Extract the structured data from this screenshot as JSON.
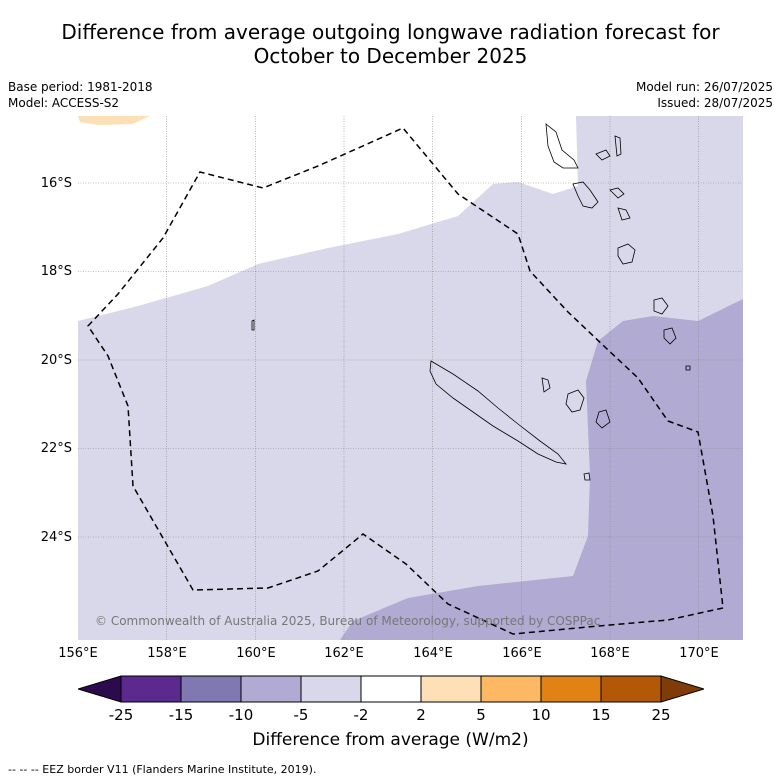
{
  "title_line1": "Difference from average outgoing longwave radiation forecast for",
  "title_line2": "October to December 2025",
  "meta": {
    "base_period": "Base period: 1981-2018",
    "model": "Model: ACCESS-S2",
    "model_run": "Model run: 26/07/2025",
    "issued": "Issued: 28/07/2025"
  },
  "map": {
    "lat_labels": [
      "16°S",
      "18°S",
      "20°S",
      "22°S",
      "24°S"
    ],
    "lon_labels": [
      "156°E",
      "158°E",
      "160°E",
      "162°E",
      "164°E",
      "166°E",
      "168°E",
      "170°E"
    ],
    "lon_range": [
      156,
      171
    ],
    "lat_range": [
      -14.8,
      -26.6
    ],
    "copyright": "© Commonwealth of Australia 2025, Bureau of Meteorology, supported by COSPPac",
    "colors": {
      "light_purple": "#d8d8ea",
      "mid_purple": "#b1aad2",
      "light_orange": "#fde0b6",
      "grid": "#888888"
    }
  },
  "colorbar": {
    "tick_labels": [
      "-25",
      "-15",
      "-10",
      "-5",
      "-2",
      "2",
      "5",
      "10",
      "15",
      "25"
    ],
    "colors": [
      "#2c0a4e",
      "#5b2a8e",
      "#8078b0",
      "#b1aad2",
      "#d8d8ea",
      "#ffffff",
      "#fde0b6",
      "#fdb863",
      "#e08214",
      "#b35806",
      "#7f3b08"
    ],
    "title": "Difference from average (W/m2)"
  },
  "footnote": "--  --  -- EEZ border V11 (Flanders Marine Institute, 2019)."
}
